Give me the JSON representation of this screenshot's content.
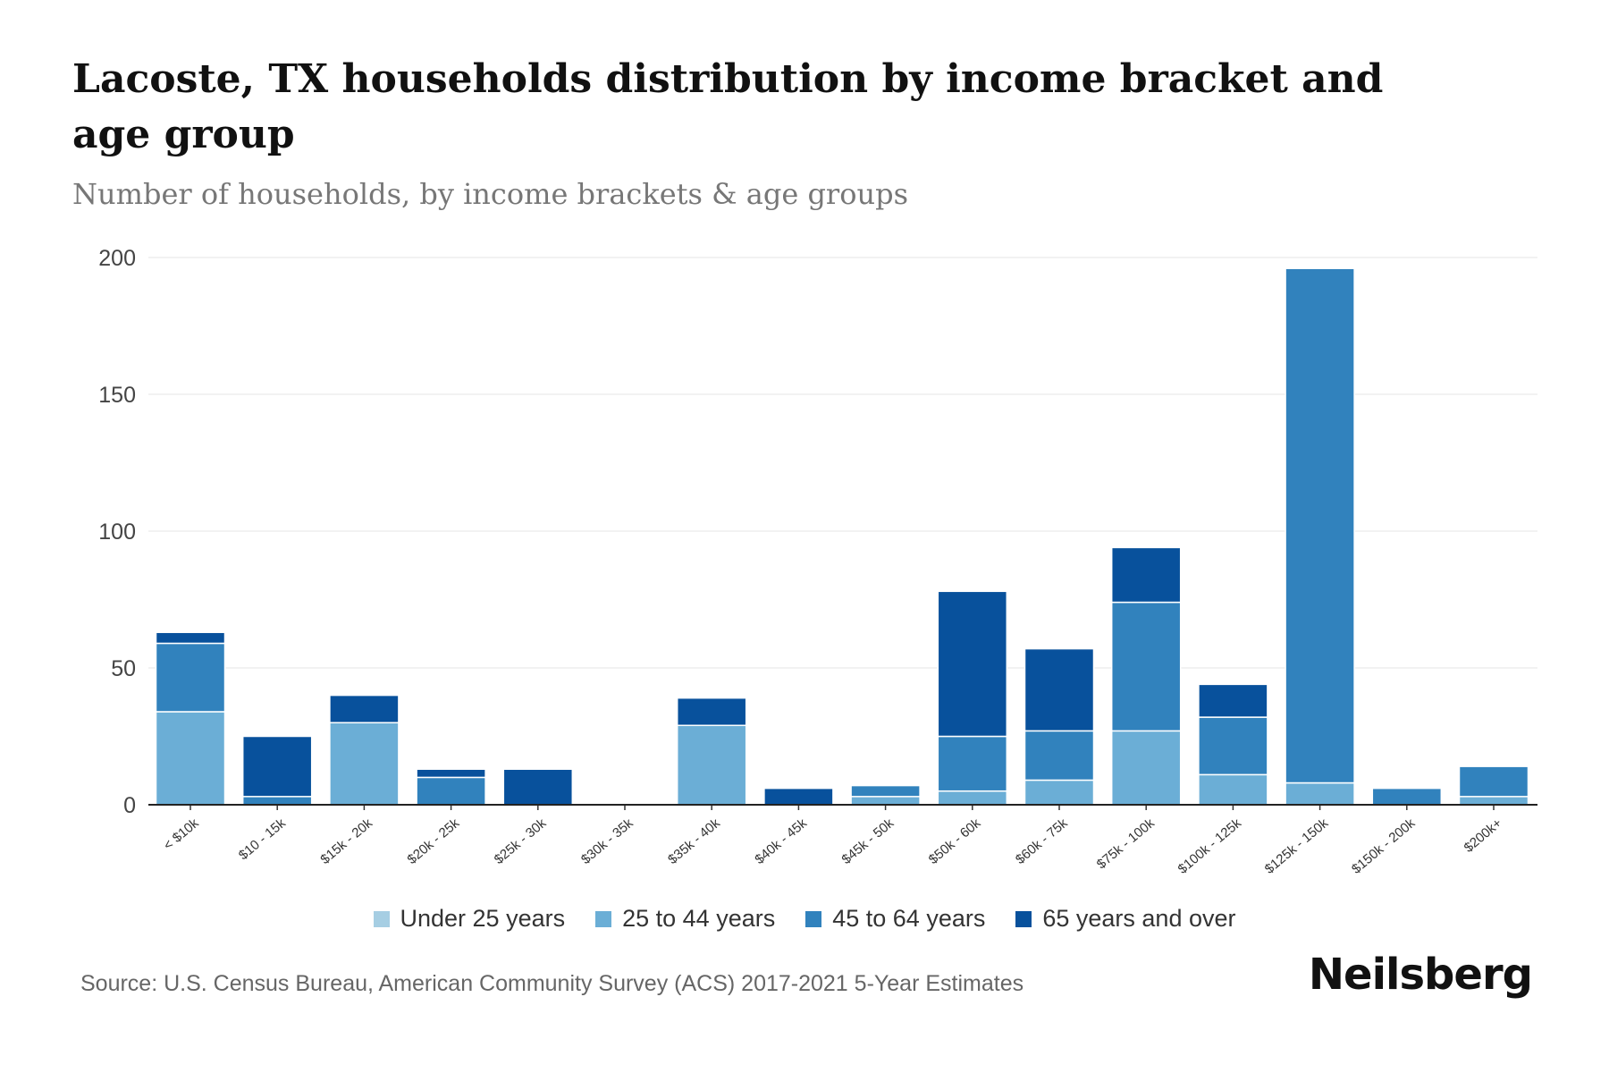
{
  "title": "Lacoste, TX households distribution by income bracket and age group",
  "subtitle": "Number of households, by income brackets & age groups",
  "source": "Source: U.S. Census Bureau, American Community Survey (ACS) 2017-2021 5-Year Estimates",
  "brand": "Neilsberg",
  "chart_data": {
    "type": "bar",
    "stacked": true,
    "title": "Lacoste, TX households distribution by income bracket and age group",
    "xlabel": "",
    "ylabel": "Number of households",
    "ylim": [
      0,
      200
    ],
    "yticks": [
      0,
      50,
      100,
      150,
      200
    ],
    "grid": true,
    "legend_position": "bottom",
    "categories": [
      "< $10k",
      "$10 - 15k",
      "$15k - 20k",
      "$20k - 25k",
      "$25k - 30k",
      "$30k - 35k",
      "$35k - 40k",
      "$40k - 45k",
      "$45k - 50k",
      "$50k - 60k",
      "$60k - 75k",
      "$75k - 100k",
      "$100k - 125k",
      "$125k - 150k",
      "$150k - 200k",
      "$200k+"
    ],
    "series": [
      {
        "name": "Under 25 years",
        "color": "#a6cee3",
        "values": [
          0,
          0,
          0,
          0,
          0,
          0,
          0,
          0,
          0,
          0,
          0,
          0,
          0,
          0,
          0,
          0
        ]
      },
      {
        "name": "25 to 44 years",
        "color": "#6baed6",
        "values": [
          34,
          0,
          30,
          0,
          0,
          0,
          29,
          0,
          3,
          5,
          9,
          27,
          11,
          8,
          0,
          3
        ]
      },
      {
        "name": "45 to 64 years",
        "color": "#3182bd",
        "values": [
          25,
          3,
          0,
          10,
          0,
          0,
          0,
          0,
          4,
          20,
          18,
          47,
          21,
          188,
          6,
          11
        ]
      },
      {
        "name": "65 years and over",
        "color": "#08519c",
        "values": [
          4,
          22,
          10,
          3,
          13,
          0,
          10,
          6,
          0,
          53,
          30,
          20,
          12,
          0,
          0,
          0
        ]
      }
    ]
  }
}
